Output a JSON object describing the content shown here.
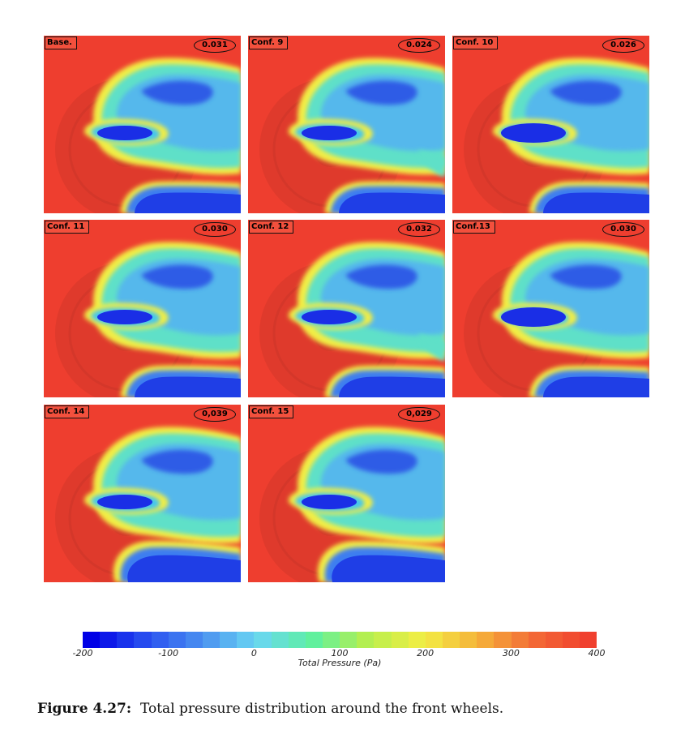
{
  "panels": [
    {
      "label": "Base.",
      "value": "0.031",
      "variant": "a"
    },
    {
      "label": "Conf. 9",
      "value": "0.024",
      "variant": "b"
    },
    {
      "label": "Conf. 10",
      "value": "0.026",
      "variant": "c"
    },
    {
      "label": "Conf. 11",
      "value": "0.030",
      "variant": "a"
    },
    {
      "label": "Conf. 12",
      "value": "0.032",
      "variant": "b"
    },
    {
      "label": "Conf.13",
      "value": "0.030",
      "variant": "c"
    },
    {
      "label": "Conf. 14",
      "value": "0,039",
      "variant": "d"
    },
    {
      "label": "Conf. 15",
      "value": "0,029",
      "variant": "d"
    }
  ],
  "colorbar": {
    "ticks": [
      "-200",
      "-100",
      "0",
      "100",
      "200",
      "300",
      "400"
    ],
    "title": "Total Pressure (Pa)",
    "range": [
      -200,
      400
    ],
    "colors": [
      "#0000e6",
      "#2950f0",
      "#4a90f0",
      "#6ad6f2",
      "#5ef0a0",
      "#b6ef4e",
      "#f2ee44",
      "#f5b33a",
      "#f36a36",
      "#f0402e"
    ]
  },
  "caption": {
    "label": "Figure 4.27:",
    "text": "Total pressure distribution around the front wheels."
  }
}
